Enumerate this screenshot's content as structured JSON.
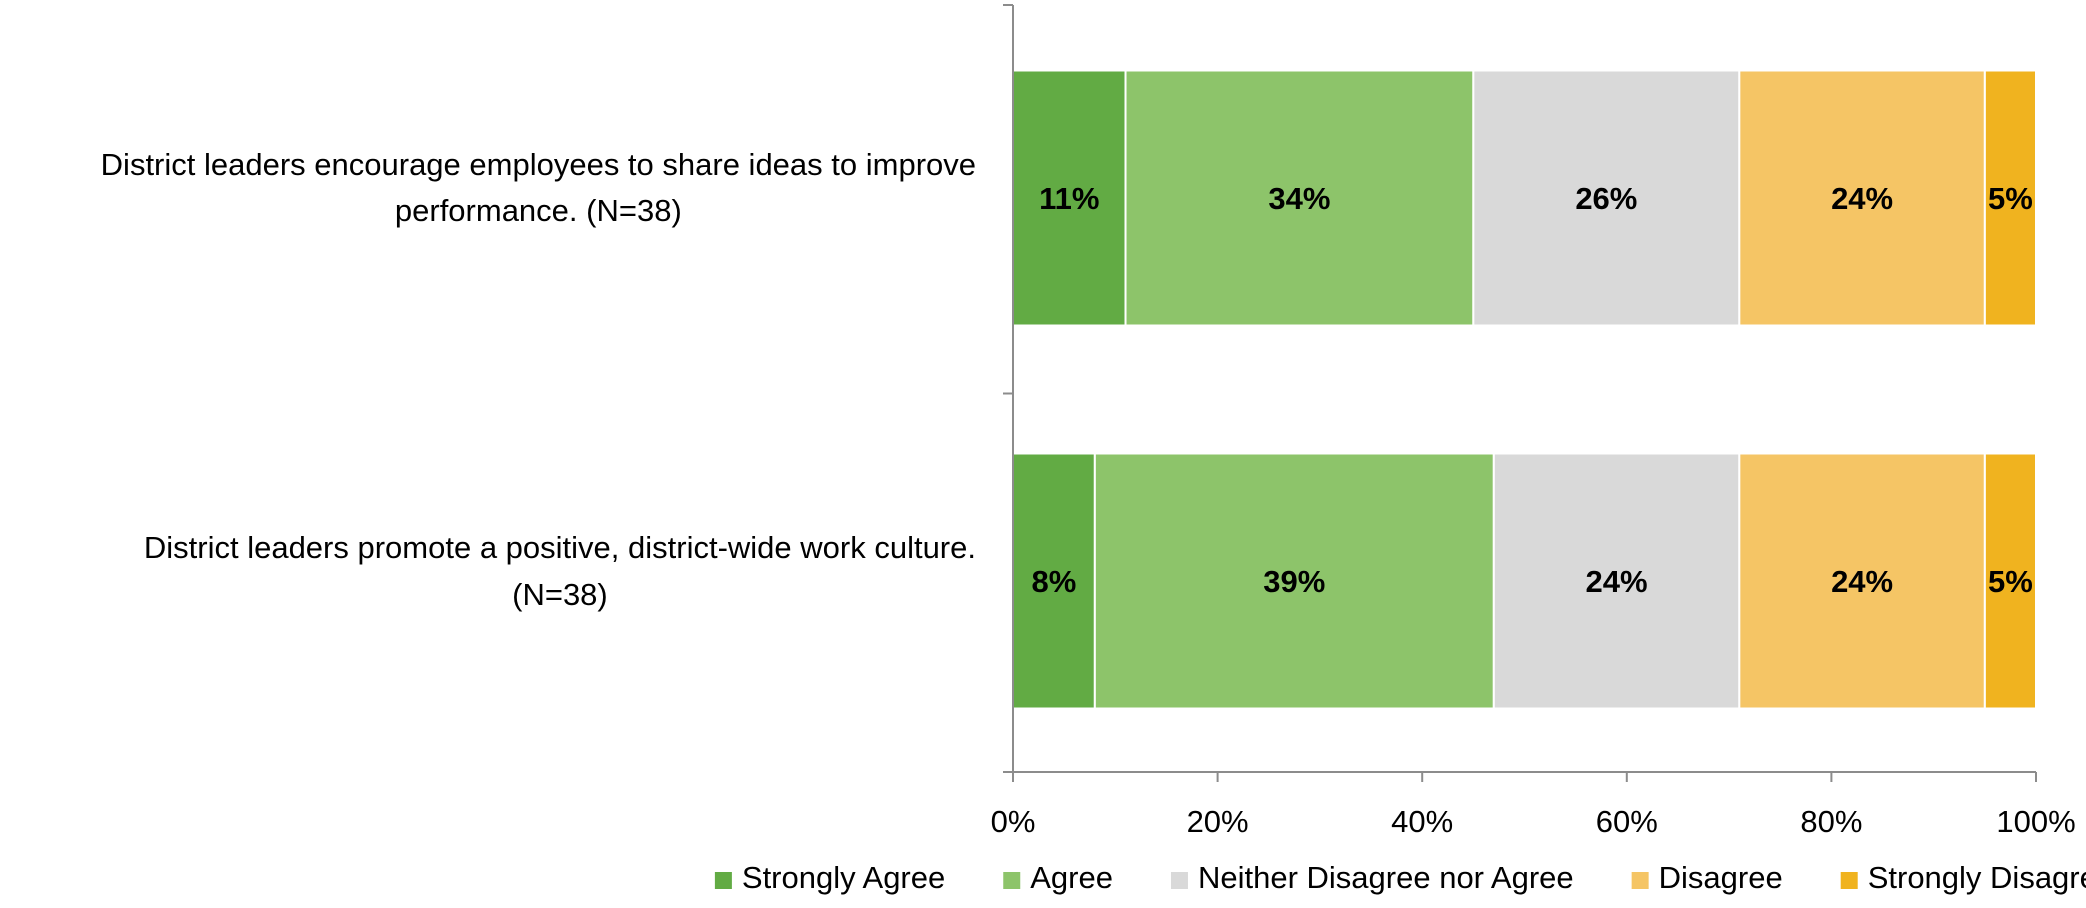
{
  "chart_data": {
    "type": "bar",
    "orientation": "horizontal",
    "stacked": true,
    "categories": [
      "District leaders encourage employees to share ideas to improve performance. (N=38)",
      "District leaders promote a positive, district-wide work culture. (N=38)"
    ],
    "series": [
      {
        "name": "Strongly Agree",
        "color": "#62AB44",
        "values": [
          11,
          8
        ],
        "labels": [
          "11%",
          "8%"
        ]
      },
      {
        "name": "Agree",
        "color": "#8DC46A",
        "values": [
          34,
          39
        ],
        "labels": [
          "34%",
          "39%"
        ]
      },
      {
        "name": "Neither Disagree nor Agree",
        "color": "#D9D9D9",
        "values": [
          26,
          24
        ],
        "labels": [
          "26%",
          "24%"
        ]
      },
      {
        "name": "Disagree",
        "color": "#F5C565",
        "values": [
          24,
          24
        ],
        "labels": [
          "24%",
          "24%"
        ]
      },
      {
        "name": "Strongly Disagree",
        "color": "#F0B31F",
        "values": [
          5,
          5
        ],
        "labels": [
          "5%",
          "5%"
        ]
      }
    ],
    "xlim": [
      0,
      100
    ],
    "x_ticks": [
      0,
      20,
      40,
      60,
      80,
      100
    ],
    "x_tick_labels": [
      "0%",
      "20%",
      "40%",
      "60%",
      "80%",
      "100%"
    ],
    "grid": false,
    "legend_position": "bottom",
    "title": "",
    "xlabel": "",
    "ylabel": ""
  }
}
